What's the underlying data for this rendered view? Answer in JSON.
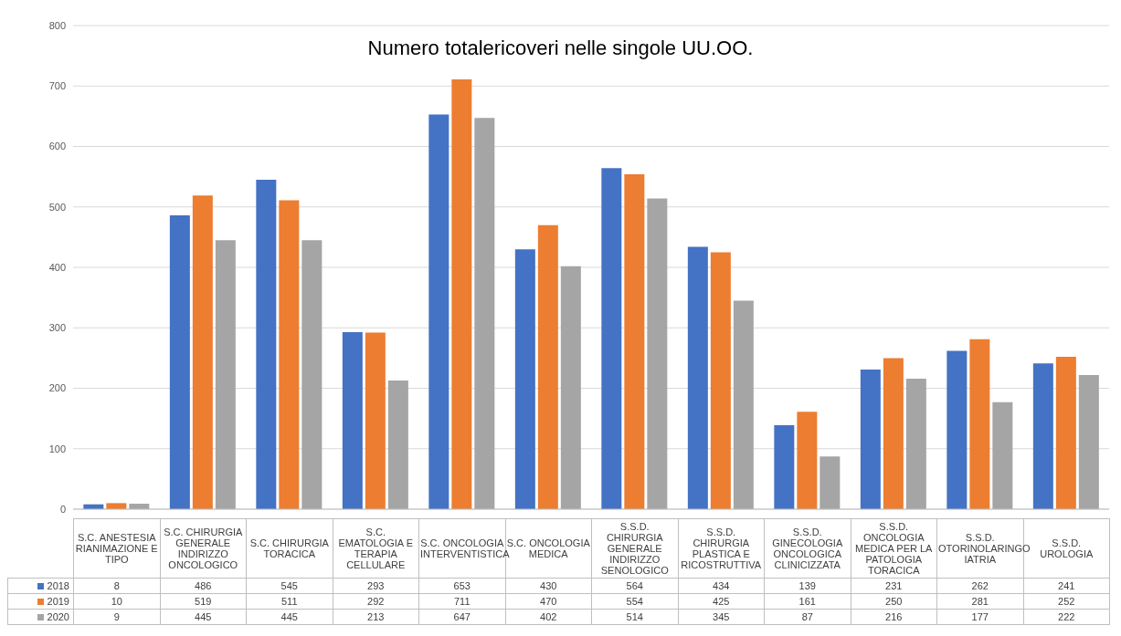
{
  "chart_data": {
    "type": "bar",
    "title": "Numero totalericoveri nelle singole UU.OO.",
    "categories": [
      "S.C. ANESTESIA RIANIMAZIONE E TIPO",
      "S.C. CHIRURGIA GENERALE INDIRIZZO ONCOLOGICO",
      "S.C. CHIRURGIA TORACICA",
      "S.C. EMATOLOGIA E TERAPIA CELLULARE",
      "S.C. ONCOLOGIA INTERVENTISTICA",
      "S.C. ONCOLOGIA MEDICA",
      "S.S.D. CHIRURGIA GENERALE INDIRIZZO SENOLOGICO",
      "S.S.D. CHIRURGIA PLASTICA E RICOSTRUTTIVA",
      "S.S.D. GINECOLOGIA ONCOLOGICA CLINICIZZATA",
      "S.S.D. ONCOLOGIA MEDICA PER LA PATOLOGIA TORACICA",
      "S.S.D. OTORINOLARINGO IATRIA",
      "S.S.D. UROLOGIA"
    ],
    "series": [
      {
        "name": "2018",
        "color": "#4472c4",
        "values": [
          8,
          486,
          545,
          293,
          653,
          430,
          564,
          434,
          139,
          231,
          262,
          241
        ]
      },
      {
        "name": "2019",
        "color": "#ed7d31",
        "values": [
          10,
          519,
          511,
          292,
          711,
          470,
          554,
          425,
          161,
          250,
          281,
          252
        ]
      },
      {
        "name": "2020",
        "color": "#a5a5a5",
        "values": [
          9,
          445,
          445,
          213,
          647,
          402,
          514,
          345,
          87,
          216,
          177,
          222
        ]
      }
    ],
    "ylim": [
      0,
      800
    ],
    "yticks": [
      0,
      100,
      200,
      300,
      400,
      500,
      600,
      700,
      800
    ],
    "grid": "y",
    "legend": "bottom",
    "data_labels": true
  }
}
